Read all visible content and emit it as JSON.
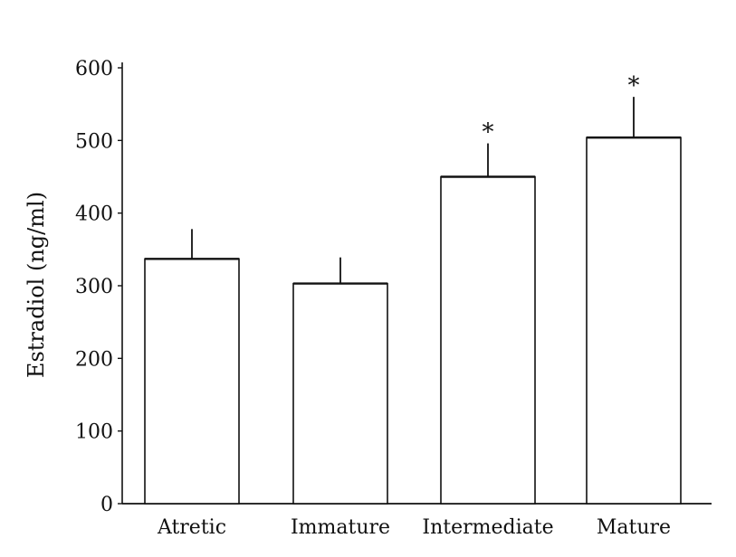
{
  "chart_data": {
    "type": "bar",
    "title": "",
    "xlabel": "",
    "ylabel": "Estradiol (ng/ml)",
    "ylim": [
      0,
      600
    ],
    "yticks": [
      0,
      100,
      200,
      300,
      400,
      500,
      600
    ],
    "categories": [
      "Atretic",
      "Immature",
      "Intermediate",
      "Mature"
    ],
    "values": [
      337,
      303,
      450,
      504
    ],
    "error_upper": [
      378,
      339,
      496,
      560
    ],
    "significance": [
      "",
      "",
      "*",
      "*"
    ],
    "grid": false,
    "colors": {
      "bar_fill": "#ffffff",
      "stroke": "#111111"
    }
  }
}
